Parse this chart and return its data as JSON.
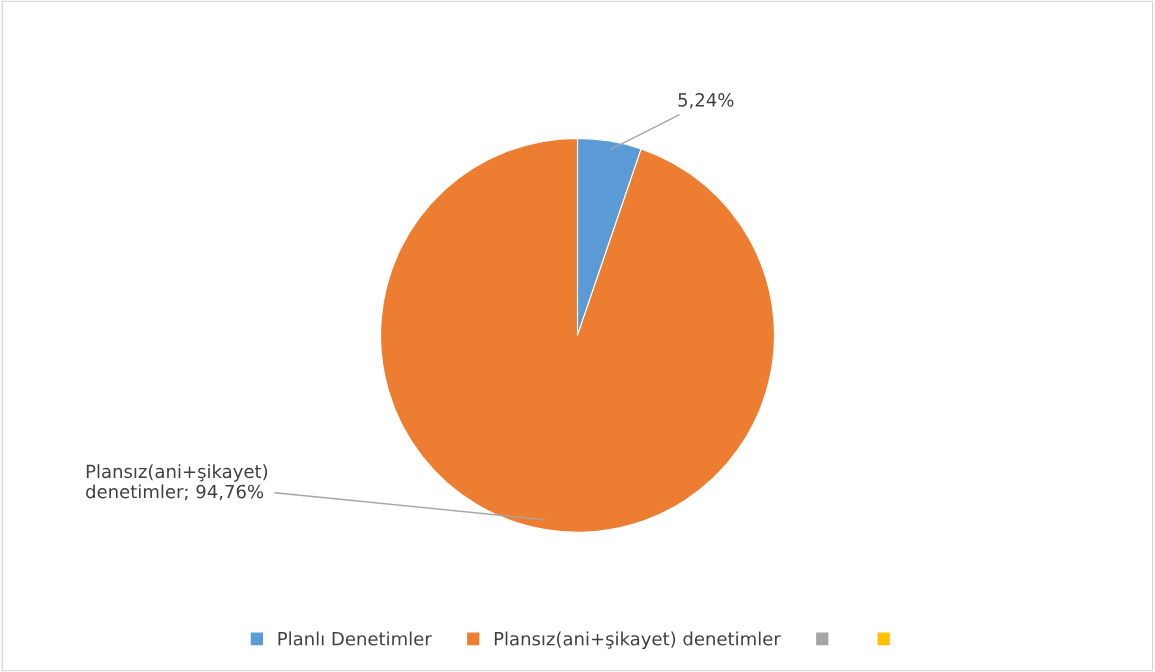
{
  "chart_data": {
    "type": "pie",
    "categories": [
      "Planlı Denetimler",
      "Plansız(ani+şikayet) denetimler",
      null,
      null
    ],
    "values": [
      5.24,
      94.76,
      0,
      0
    ],
    "colors": [
      "#5b9bd5",
      "#ed7d31",
      "#a5a5a5",
      "#ffc000"
    ],
    "value_labels": [
      "5,24%",
      "Plansız(ani+şikayet)\ndenetimler; 94,76%",
      null,
      null
    ],
    "legend": "bottom"
  }
}
